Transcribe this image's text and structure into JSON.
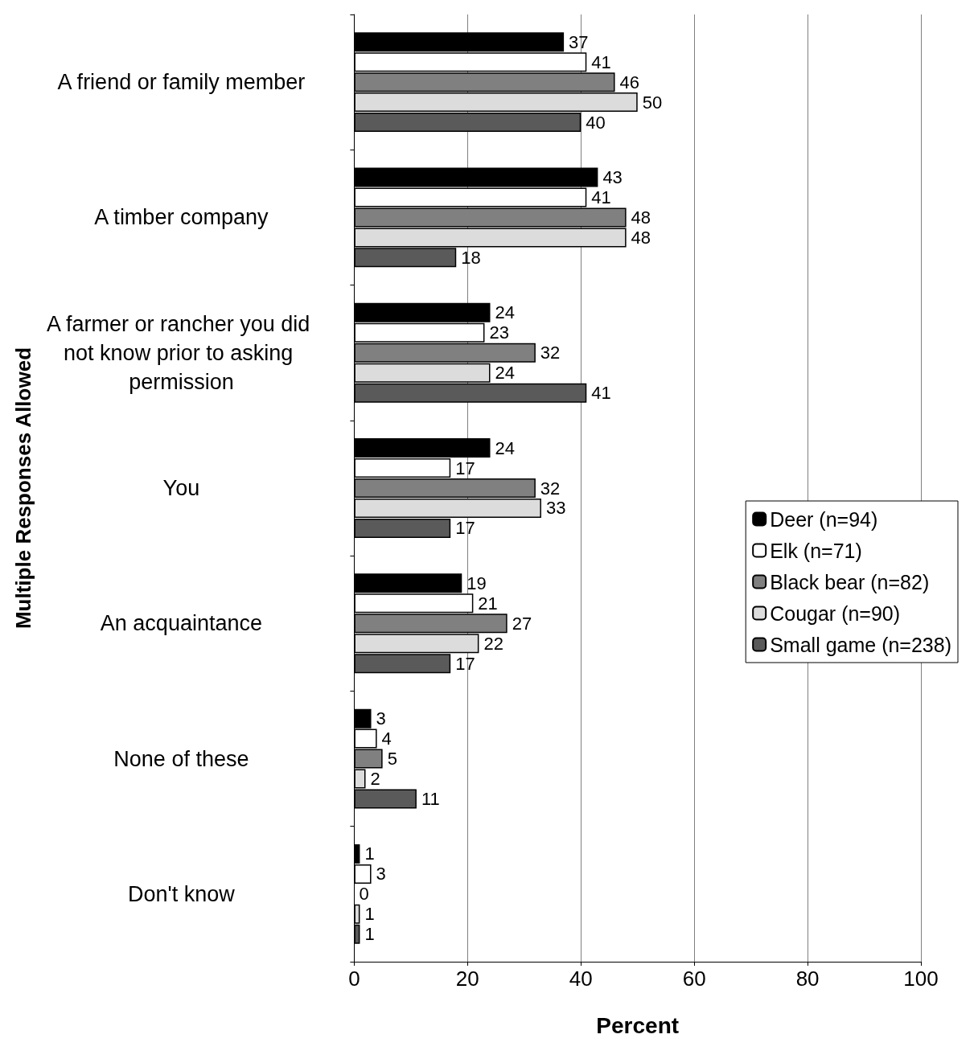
{
  "chart_data": {
    "type": "bar",
    "orientation": "horizontal",
    "xlabel": "Percent",
    "ylabel": "Multiple Responses Allowed",
    "categories": [
      "A friend or family member",
      "A timber company",
      "A farmer or rancher you did not know prior to asking permission",
      "You",
      "An acquaintance",
      "None of these",
      "Don't know"
    ],
    "series": [
      {
        "name": "Deer (n=94)",
        "color": "#000000",
        "values": [
          37,
          43,
          24,
          24,
          19,
          3,
          1
        ]
      },
      {
        "name": "Elk (n=71)",
        "color": "#ffffff",
        "values": [
          41,
          41,
          23,
          17,
          21,
          4,
          3
        ]
      },
      {
        "name": "Black bear (n=82)",
        "color": "#808080",
        "values": [
          46,
          48,
          32,
          32,
          27,
          5,
          0
        ]
      },
      {
        "name": "Cougar (n=90)",
        "color": "#dcdcdc",
        "values": [
          50,
          48,
          24,
          33,
          22,
          2,
          1
        ]
      },
      {
        "name": "Small game (n=238)",
        "color": "#5a5a5a",
        "values": [
          40,
          18,
          41,
          17,
          17,
          11,
          1
        ]
      }
    ],
    "xlim": [
      0,
      100
    ],
    "xticks": [
      0,
      20,
      40,
      60,
      80,
      100
    ],
    "grid": "x",
    "legend": "right",
    "data_labels": true
  }
}
